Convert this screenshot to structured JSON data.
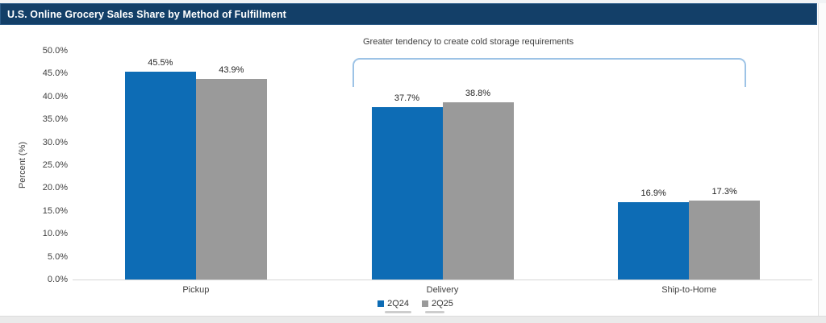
{
  "header": {
    "title": "U.S. Online Grocery Sales Share by Method of Fulfillment"
  },
  "annotation": {
    "text": "Greater tendency to create cold storage requirements"
  },
  "chart_data": {
    "type": "bar",
    "title": "U.S. Online Grocery Sales Share by Method of Fulfillment",
    "categories": [
      "Pickup",
      "Delivery",
      "Ship-to-Home"
    ],
    "series": [
      {
        "name": "2Q24",
        "color": "#0d6cb5",
        "values": [
          45.5,
          37.7,
          16.9
        ]
      },
      {
        "name": "2Q25",
        "color": "#9a9a9a",
        "values": [
          43.9,
          38.8,
          17.3
        ]
      }
    ],
    "value_labels": [
      [
        "45.5%",
        "43.9%"
      ],
      [
        "37.7%",
        "38.8%"
      ],
      [
        "16.9%",
        "17.3%"
      ]
    ],
    "xlabel": "",
    "ylabel": "Percent (%)",
    "ylim": [
      0,
      50
    ],
    "ytick_step": 5,
    "ytick_labels": [
      "0.0%",
      "5.0%",
      "10.0%",
      "15.0%",
      "20.0%",
      "25.0%",
      "30.0%",
      "35.0%",
      "40.0%",
      "45.0%",
      "50.0%"
    ],
    "legend": [
      "2Q24",
      "2Q25"
    ],
    "legend_position": "bottom",
    "grid": false,
    "annotation_text": "Greater tendency to create cold storage requirements",
    "bracket_color": "#9dc3e6",
    "banner_color": "#133f68"
  }
}
